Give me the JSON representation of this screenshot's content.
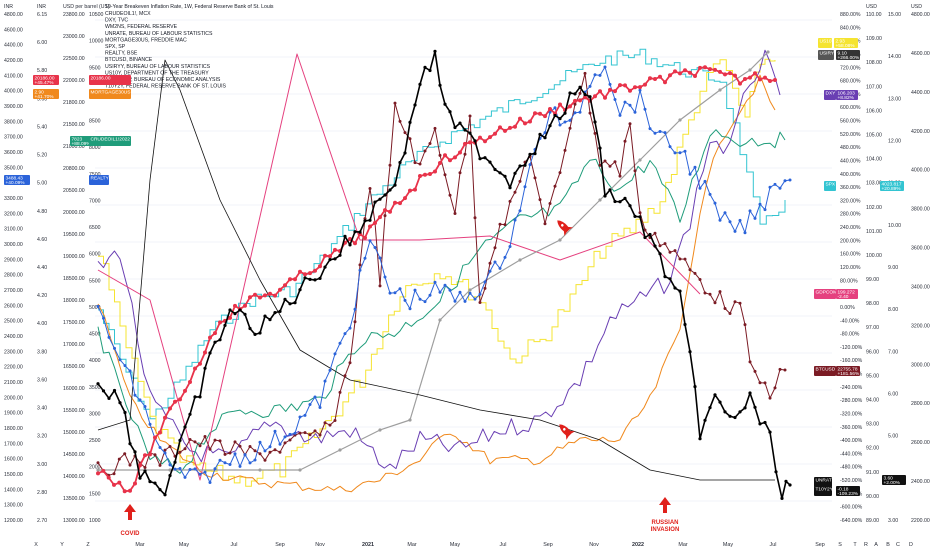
{
  "header": {
    "title": "10-Year Breakeven Inflation Rate, 1W, Federal Reserve Bank of St. Louis",
    "unit_left_1": "INR",
    "unit_left_2": "INR",
    "unit_left_3": "USD per barrel (US)"
  },
  "legend": [
    "CRUDEOIL1!, MCX",
    "DXY, TVC",
    "WM2NS, FEDERAL RESERVE",
    "UNRATE, BUREAU OF LABOUR STATISTICS",
    "MORTGAGE30US, FREDDIE MAC",
    "SPX, SP",
    "REALTY, BSE",
    "BTCUSD, BINANCE",
    "USIRYY, BUREAU OF LABOUR STATISTICS",
    "US10Y, DEPARTMENT OF THE TREASURY",
    "GDPCOMP, BUREAU OF ECONOMIC ANALYSIS",
    "T10Y2Y, FEDERAL RESERVE BANK OF ST. LOUIS"
  ],
  "axes": {
    "left_a": [
      "4800.00",
      "4600.00",
      "4400.00",
      "4200.00",
      "4100.00",
      "4000.00",
      "3900.00",
      "3800.00",
      "3700.00",
      "3600.00",
      "3500.00",
      "3400.00",
      "3300.00",
      "3200.00",
      "3100.00",
      "3000.00",
      "2900.00",
      "2800.00",
      "2700.00",
      "2600.00",
      "2500.00",
      "2400.00",
      "2300.00",
      "2200.00",
      "2100.00",
      "2000.00",
      "1900.00",
      "1800.00",
      "1700.00",
      "1600.00",
      "1500.00",
      "1400.00",
      "1300.00",
      "1200.00"
    ],
    "left_b": [
      "6.15",
      "6.00",
      "5.80",
      "5.60",
      "5.40",
      "5.20",
      "5.00",
      "4.80",
      "4.60",
      "4.40",
      "4.20",
      "4.00",
      "3.80",
      "3.60",
      "3.40",
      "3.20",
      "3.00",
      "2.80",
      "2.70"
    ],
    "left_c": [
      "23800.00",
      "23000.00",
      "22500.00",
      "22000.00",
      "21800.00",
      "21500.00",
      "21000.00",
      "20800.00",
      "20500.00",
      "20000.00",
      "19500.00",
      "19000.00",
      "18500.00",
      "18000.00",
      "17500.00",
      "17000.00",
      "16500.00",
      "16000.00",
      "15500.00",
      "15000.00",
      "14500.00",
      "14000.00",
      "13500.00",
      "13000.00"
    ],
    "left_d": [
      "10500",
      "10000",
      "9500",
      "9000",
      "8500",
      "8000",
      "7500",
      "7000",
      "6500",
      "6000",
      "5500",
      "5000",
      "4500",
      "4000",
      "3500",
      "3000",
      "2500",
      "2000",
      "1500",
      "1000"
    ],
    "right_pct": [
      "880.00%",
      "840.00%",
      "800.00%",
      "760.00%",
      "720.00%",
      "680.00%",
      "640.00%",
      "600.00%",
      "560.00%",
      "520.00%",
      "480.00%",
      "440.00%",
      "400.00%",
      "360.00%",
      "320.00%",
      "280.00%",
      "240.00%",
      "200.00%",
      "160.00%",
      "120.00%",
      "80.00%",
      "40.00%",
      "0.00%",
      "-40.00%",
      "-80.00%",
      "-120.00%",
      "-160.00%",
      "-200.00%",
      "-240.00%",
      "-280.00%",
      "-320.00%",
      "-360.00%",
      "-400.00%",
      "-440.00%",
      "-480.00%",
      "-520.00%",
      "-560.00%",
      "-600.00%",
      "-640.00%"
    ],
    "right_b": [
      "110.00",
      "109.00",
      "108.00",
      "107.00",
      "106.00",
      "105.00",
      "104.00",
      "103.00",
      "102.00",
      "101.00",
      "100.00",
      "99.00",
      "98.00",
      "97.00",
      "96.00",
      "95.00",
      "94.00",
      "93.00",
      "92.00",
      "91.00",
      "90.00",
      "89.00"
    ],
    "right_c": [
      "15.00",
      "14.00",
      "13.00",
      "12.00",
      "11.00",
      "10.00",
      "9.00",
      "8.00",
      "7.00",
      "6.00",
      "5.00",
      "4.00",
      "3.00"
    ],
    "right_d": [
      "4800.00",
      "4600.00",
      "4400.00",
      "4200.00",
      "4000.00",
      "3800.00",
      "3600.00",
      "3400.00",
      "3200.00",
      "3000.00",
      "2800.00",
      "2600.00",
      "2400.00",
      "2200.00"
    ],
    "unit_right_1": "USD",
    "unit_right_2": "USD",
    "bottom_letters": [
      "X",
      "Y",
      "Z",
      "S",
      "T",
      "R",
      "A",
      "B",
      "C",
      "D"
    ]
  },
  "tags": {
    "us10y": {
      "label": "US10Y",
      "val": "2.93",
      "pct": "+58.08%"
    },
    "usirty": {
      "label": "USIRYY",
      "val": "9.10",
      "pct": "+266.00%"
    },
    "dxy": {
      "label": "DXY",
      "val": "106.203",
      "pct": "+8.82%"
    },
    "spx": {
      "label": "SPX",
      "val": "4023.817",
      "pct": "+20.89%"
    },
    "gdpcomp": {
      "label": "GDPCOMP",
      "val": "199.272",
      "pct": "-2.40"
    },
    "btcusd": {
      "label": "BTCUSD",
      "val": "22755.78",
      "pct": "+181.56%"
    },
    "unrate": {
      "label": "UNRATE",
      "val": "3.60",
      "pct": "+2.00%"
    },
    "t10y2y": {
      "label": "T10Y2Y",
      "val": "-0.18",
      "pct": "-109.23%"
    },
    "left1": {
      "val": "20186.00",
      "pct": "+45.47%"
    },
    "left2": {
      "val": "2.90",
      "pct": "+41.70%"
    },
    "left3": {
      "val": "7823",
      "pct": "+88.09%"
    },
    "left4": {
      "val": "3488.43",
      "pct": "+40.09%"
    },
    "realty_label": "REALTY",
    "crudeoil_label": "CRUDEOIL1!2022",
    "mortgage_label": "MORTGAGE30US"
  },
  "dates": [
    "Mar",
    "May",
    "Jul",
    "Sep",
    "Nov",
    "2021",
    "Mar",
    "May",
    "Jul",
    "Sep",
    "Nov",
    "2022",
    "Mar",
    "May",
    "Jul",
    "Sep"
  ],
  "annotations": {
    "covid": "COVID",
    "russian_1": "RUSSIAN",
    "russian_2": "INVASION"
  },
  "colors": {
    "black": "#000000",
    "red": "#e8334a",
    "darkred": "#7b1b24",
    "blue": "#2b63d9",
    "cyan": "#33c4d1",
    "yellow": "#f5e431",
    "orange": "#f0891d",
    "purple": "#6a3fb3",
    "green": "#1f9c7a",
    "pink": "#e5417f",
    "gray": "#9e9e9e",
    "annotation": "#e0201b"
  },
  "chart_data": {
    "type": "line",
    "title": "10-Year Breakeven Inflation Rate, 1W, Federal Reserve Bank of St. Louis",
    "x": [
      "2020-01",
      "2020-03",
      "2020-05",
      "2020-07",
      "2020-09",
      "2020-11",
      "2021-01",
      "2021-03",
      "2021-05",
      "2021-07",
      "2021-09",
      "2021-11",
      "2022-01",
      "2022-03",
      "2022-05",
      "2022-07"
    ],
    "series": [
      {
        "name": "SPX",
        "values": [
          3300,
          2500,
          2950,
          3200,
          3350,
          3600,
          3800,
          3950,
          4200,
          4400,
          4350,
          4700,
          4500,
          4300,
          4000,
          4023
        ]
      },
      {
        "name": "BTCUSD",
        "values": [
          8500,
          6500,
          9000,
          11000,
          11500,
          18000,
          33000,
          57000,
          36000,
          40000,
          47000,
          57000,
          38000,
          46000,
          29000,
          22755
        ]
      },
      {
        "name": "DXY",
        "values": [
          98,
          101,
          99,
          95,
          93,
          92,
          90,
          92,
          90,
          92,
          94,
          96,
          96,
          99,
          103,
          106.2
        ]
      },
      {
        "name": "US10Y",
        "values": [
          1.8,
          0.7,
          0.7,
          0.6,
          0.7,
          0.9,
          1.1,
          1.7,
          1.6,
          1.3,
          1.5,
          1.5,
          1.8,
          2.4,
          2.9,
          2.93
        ]
      },
      {
        "name": "USIRYY",
        "values": [
          2.5,
          1.5,
          0.1,
          1.0,
          1.4,
          1.2,
          1.4,
          2.6,
          5.0,
          5.4,
          5.4,
          6.8,
          7.5,
          8.5,
          8.6,
          9.1
        ]
      },
      {
        "name": "UNRATE",
        "values": [
          3.5,
          4.4,
          14.7,
          10.2,
          7.9,
          6.7,
          6.4,
          6.0,
          5.8,
          5.4,
          4.7,
          4.2,
          4.0,
          3.6,
          3.6,
          3.6
        ]
      },
      {
        "name": "T10Y2Y",
        "values": [
          0.2,
          0.5,
          0.5,
          0.5,
          0.6,
          0.8,
          1.1,
          1.5,
          1.5,
          1.2,
          1.2,
          0.8,
          0.6,
          0.2,
          0.2,
          -0.18
        ]
      }
    ]
  }
}
